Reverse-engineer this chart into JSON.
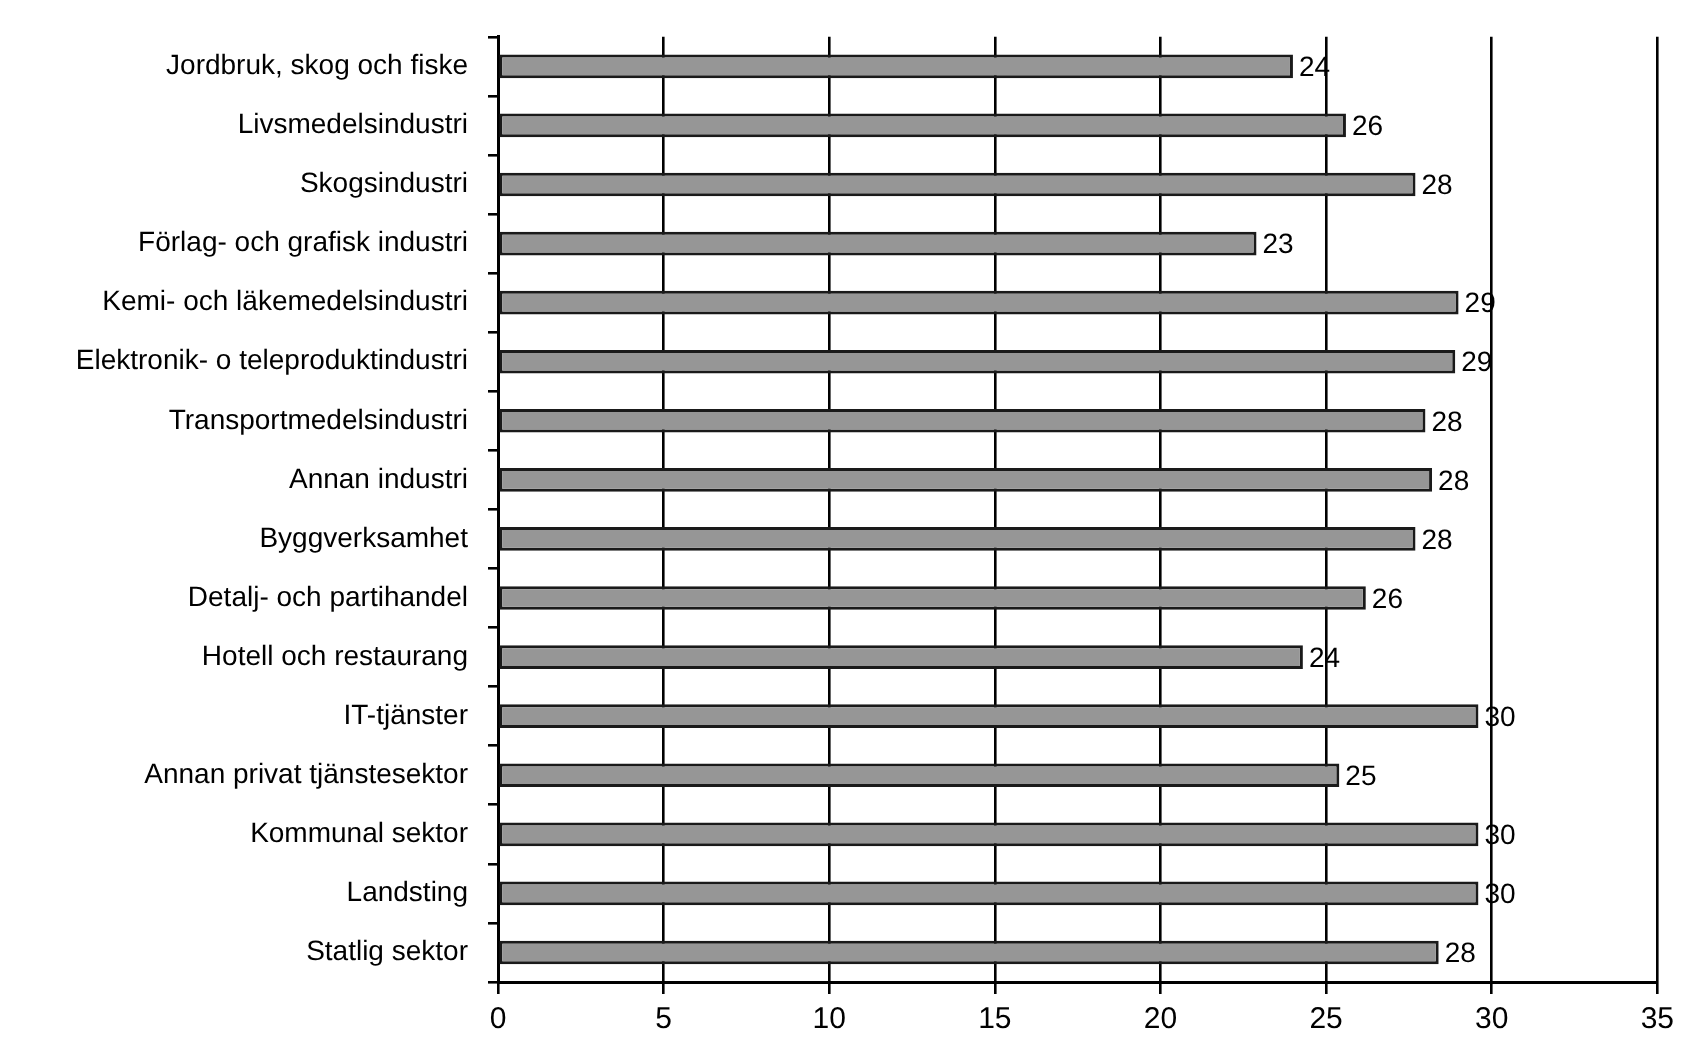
{
  "chart_data": {
    "type": "bar",
    "orientation": "horizontal",
    "categories": [
      "Jordbruk, skog och fiske",
      "Livsmedelsindustri",
      "Skogsindustri",
      "Förlag- och grafisk industri",
      "Kemi- och läkemedelsindustri",
      "Elektronik- o teleproduktindustri",
      "Transportmedelsindustri",
      "Annan industri",
      "Byggverksamhet",
      "Detalj- och partihandel",
      "Hotell och restaurang",
      "IT-tjänster",
      "Annan privat tjänstesektor",
      "Kommunal sektor",
      "Landsting",
      "Statlig sektor"
    ],
    "values": [
      24.0,
      25.6,
      27.7,
      22.9,
      29.0,
      28.9,
      28.0,
      28.2,
      27.7,
      26.2,
      24.3,
      29.6,
      25.4,
      29.6,
      29.6,
      28.4
    ],
    "value_labels": [
      "24",
      "26",
      "28",
      "23",
      "29",
      "29",
      "28",
      "28",
      "28",
      "26",
      "24",
      "30",
      "25",
      "30",
      "30",
      "28"
    ],
    "color": "#969696",
    "xlim": [
      0,
      35
    ],
    "xticks": [
      0,
      5,
      10,
      15,
      20,
      25,
      30,
      35
    ],
    "grid": "x"
  }
}
